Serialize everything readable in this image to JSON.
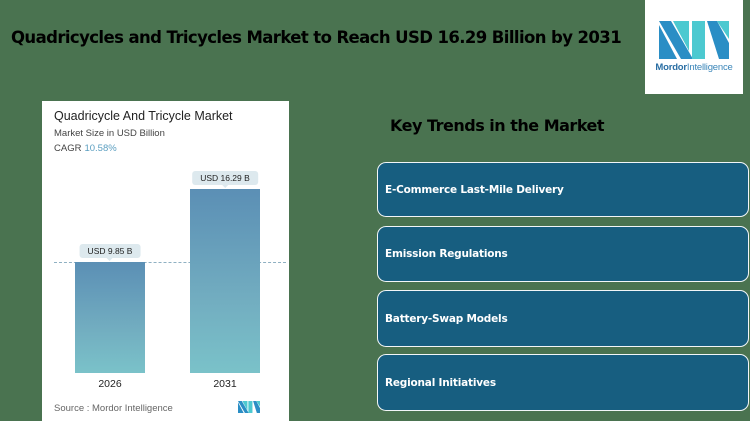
{
  "headline": "Quadricycles and Tricycles Market to Reach USD 16.29 Billion by 2031",
  "logo": {
    "brand_bold": "Mordor",
    "brand_light": "Intelligence",
    "colors": {
      "dark": "#2a8ec5",
      "light": "#4cc9d0"
    }
  },
  "card": {
    "title": "Quadricycle And Tricycle Market",
    "subtitle": "Market Size in USD Billion",
    "cagr_label": "CAGR",
    "cagr_value": "10.58%",
    "source": "Source :  Mordor Intelligence"
  },
  "chart_data": {
    "type": "bar",
    "title": "Quadricycle And Tricycle Market",
    "subtitle": "Market Size in USD Billion",
    "categories": [
      "2026",
      "2031"
    ],
    "values": [
      9.85,
      16.29
    ],
    "value_labels": [
      "USD 9.85 B",
      "USD 16.29 B"
    ],
    "annotation": "CAGR 10.58%",
    "xlabel": "",
    "ylabel": "Market Size in USD Billion",
    "ylim": [
      0,
      16.29
    ],
    "grid": false,
    "reference_line": {
      "style": "dashed",
      "at_value": 9.85
    },
    "legend": null,
    "bar_color_gradient": [
      "#5b8fb5",
      "#7ac2c9"
    ]
  },
  "trends": {
    "title": "Key Trends in the Market",
    "items": [
      {
        "label": "E-Commerce Last-Mile Delivery"
      },
      {
        "label": "Emission Regulations"
      },
      {
        "label": "Battery-Swap Models"
      },
      {
        "label": "Regional Initiatives"
      }
    ],
    "box_color": "#175e80"
  }
}
